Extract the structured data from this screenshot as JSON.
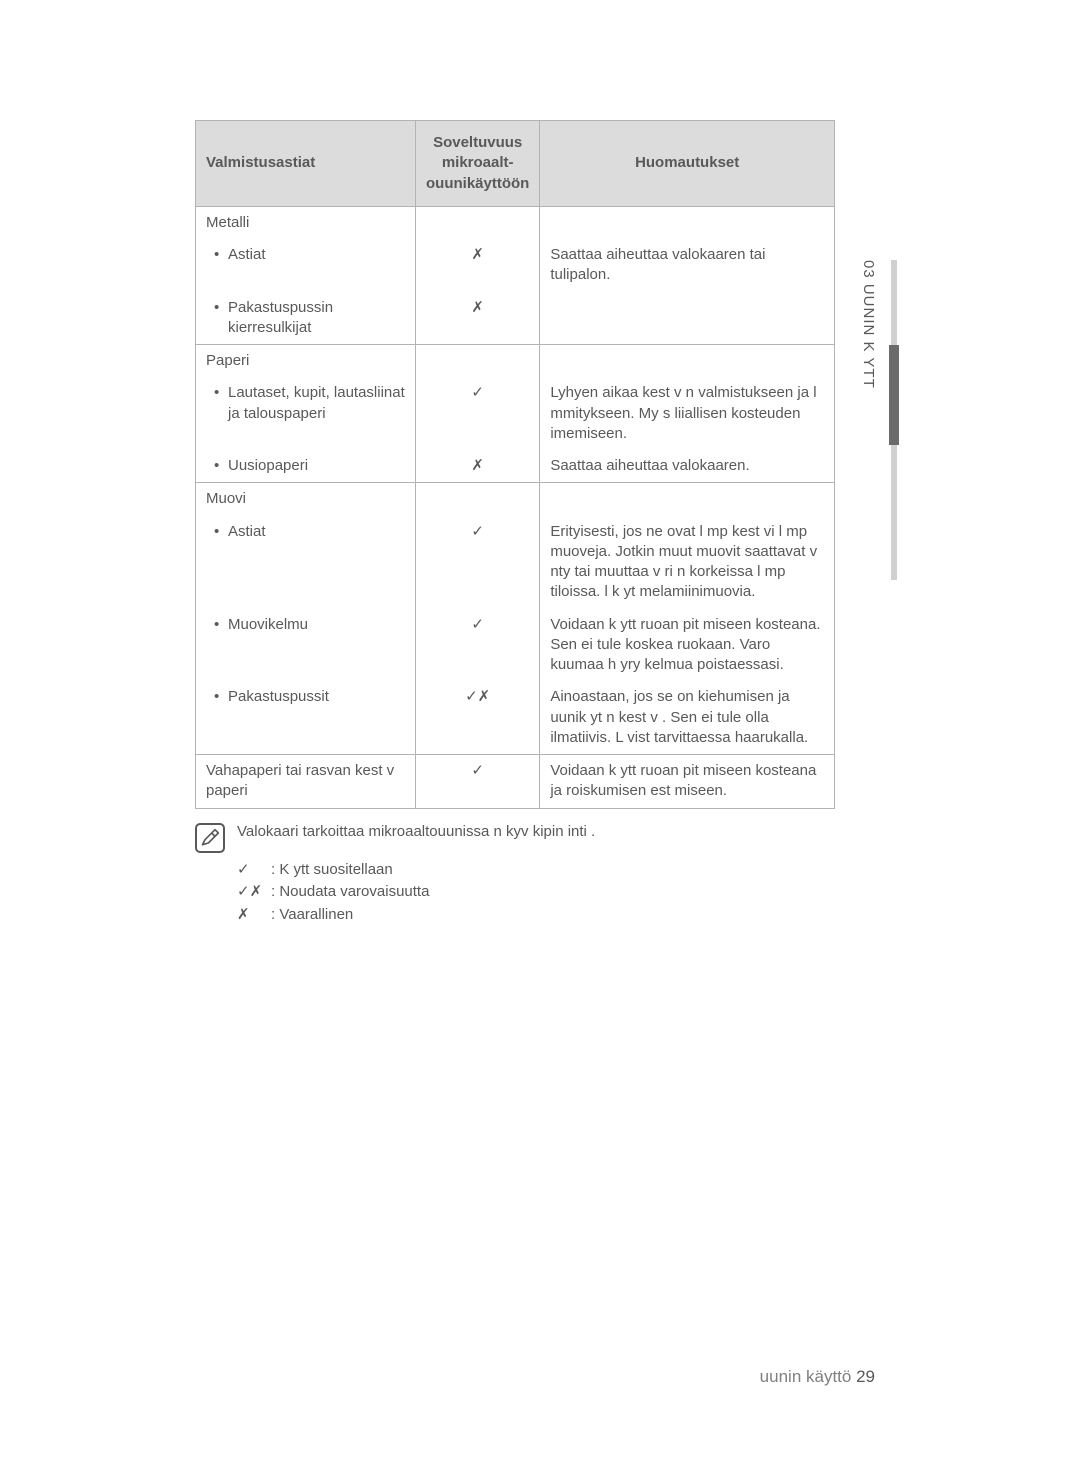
{
  "table": {
    "headers": {
      "cookware": "Valmistusastiat",
      "safe": "Soveltuvuus mikroaalt-ouunikäyttöön",
      "comments": "Huomautukset"
    },
    "groups": [
      {
        "category": "Metalli",
        "items": [
          {
            "name": "Astiat",
            "safe": "✗",
            "comment": "Saattaa aiheuttaa valokaaren tai tulipalon."
          },
          {
            "name": "Pakastuspussin kierresulkijat",
            "safe": "✗",
            "comment": ""
          }
        ]
      },
      {
        "category": "Paperi",
        "items": [
          {
            "name": "Lautaset, kupit, lautasliinat ja talouspaperi",
            "safe": "✓",
            "comment": "Lyhyen aikaa kest v n valmistukseen ja l mmitykseen. My s liiallisen kosteuden imemiseen."
          },
          {
            "name": "Uusiopaperi",
            "safe": "✗",
            "comment": "Saattaa aiheuttaa valokaaren."
          }
        ]
      },
      {
        "category": "Muovi",
        "items": [
          {
            "name": "Astiat",
            "safe": "✓",
            "comment": "Erityisesti, jos ne ovat l mp kest vi  l mp muoveja. Jotkin muut muovit saattavat v  nty  tai muuttaa v ri  n korkeissa l mp tiloissa.  l  k yt  melamiinimuovia."
          },
          {
            "name": "Muovikelmu",
            "safe": "✓",
            "comment": "Voidaan k ytt   ruoan pit miseen kosteana. Sen ei tule koskea ruokaan. Varo kuumaa h yry  kelmua poistaessasi."
          },
          {
            "name": "Pakastuspussit",
            "safe": "✓✗",
            "comment": "Ainoastaan, jos se on kiehumisen ja uunik yt n kest v  . Sen ei tule olla ilmatiivis. L vist  tarvittaessa haarukalla."
          }
        ]
      }
    ],
    "final_row": {
      "name": "Vahapaperi tai rasvan kest v  paperi",
      "safe": "✓",
      "comment": "Voidaan k ytt   ruoan pit miseen kosteana ja roiskumisen est miseen."
    }
  },
  "note": {
    "text": "Valokaari  tarkoittaa mikroaaltouunissa n kyv   kipin inti ."
  },
  "legend": [
    {
      "symbol": "✓",
      "text": ": K ytt   suositellaan"
    },
    {
      "symbol": "✓✗",
      "text": ": Noudata varovaisuutta"
    },
    {
      "symbol": "✗",
      "text": ": Vaarallinen"
    }
  ],
  "side_label": "03 UUNIN K YTT",
  "footer": {
    "text": "uunin käyttö ",
    "page": "29"
  }
}
